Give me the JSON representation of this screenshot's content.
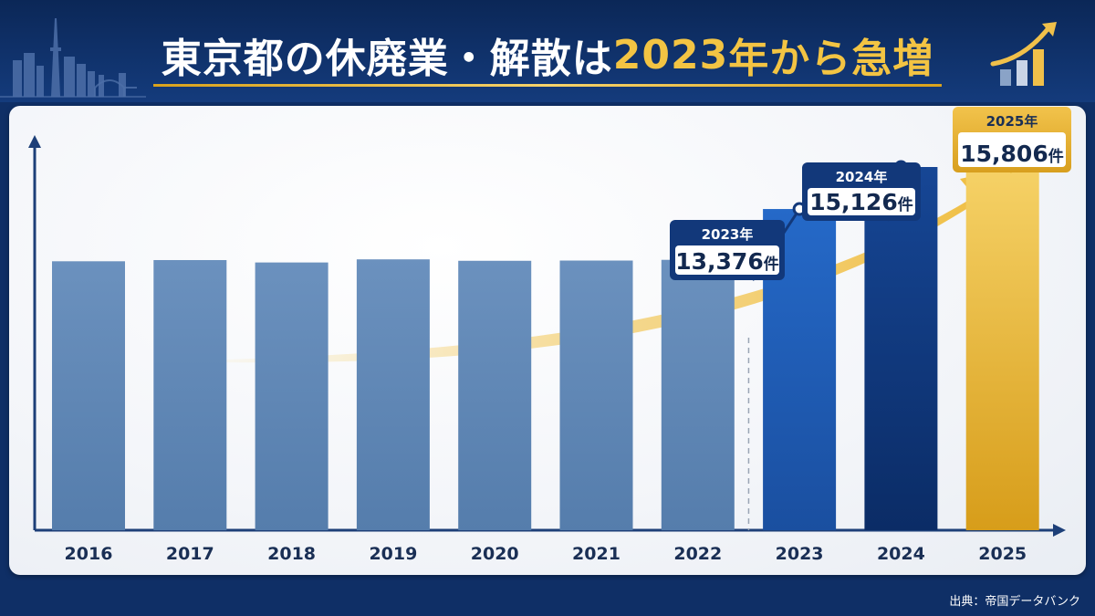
{
  "title": {
    "part1": "東京都の休廃業・解散は",
    "part2": "2023",
    "part3": "年から急増"
  },
  "source": "出典：帝国データバンク",
  "colors": {
    "base_bar": "#5f87b6",
    "bar_2023": "#1e5db8",
    "bar_2024": "#0f3a82",
    "bar_2025": "#e8b52e",
    "callout_border": "#12387a",
    "callout_gold": "#e0a923",
    "arrow": "#f0c04a"
  },
  "icons": [
    "tokyo-skyline-icon",
    "growth-chart-icon",
    "trend-arrow-icon"
  ],
  "chart_data": {
    "type": "bar",
    "categories": [
      "2016",
      "2017",
      "2018",
      "2019",
      "2020",
      "2021",
      "2022",
      "2023",
      "2024",
      "2025"
    ],
    "values": [
      11200,
      11250,
      11150,
      11280,
      11220,
      11230,
      11260,
      13376,
      15126,
      15806
    ],
    "ylim": [
      0,
      16000
    ],
    "grid": false,
    "callouts": [
      {
        "year": "2023年",
        "value": "13,376",
        "unit": "件"
      },
      {
        "year": "2024年",
        "value": "15,126",
        "unit": "件"
      },
      {
        "year": "2025年",
        "value": "15,806",
        "unit": "件"
      }
    ]
  }
}
